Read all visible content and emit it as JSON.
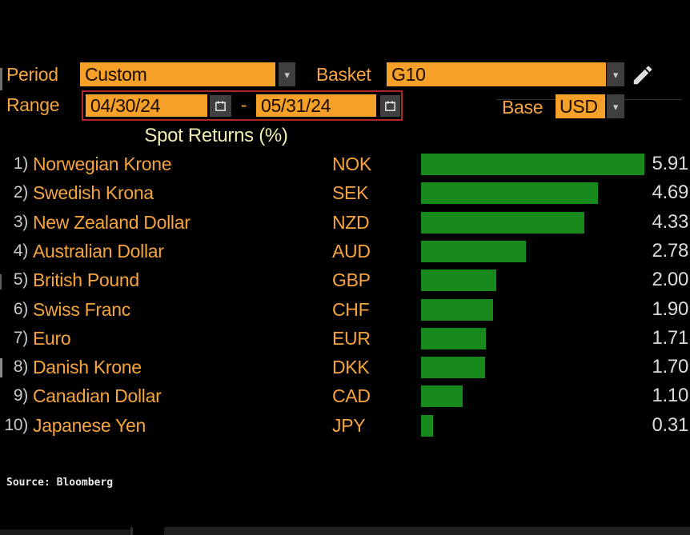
{
  "controls": {
    "period_label": "Period",
    "period_value": "Custom",
    "basket_label": "Basket",
    "basket_value": "G10",
    "range_label": "Range",
    "range_start": "04/30/24",
    "range_separator": "-",
    "range_end": "05/31/24",
    "base_label": "Base",
    "base_value": "USD"
  },
  "icons": {
    "dropdown_arrow": "▾"
  },
  "title": "Spot Returns (%)",
  "source": "Source: Bloomberg",
  "colors": {
    "accent_orange": "#F6A43D",
    "field_orange": "#F5A028",
    "border_red": "#B32626",
    "bar_green": "#17891D",
    "title_yellow": "#EFEDB4"
  },
  "chart_data": {
    "type": "bar",
    "orientation": "horizontal",
    "title": "Spot Returns (%)",
    "unit": "%",
    "value_labels_shown": true,
    "rows": [
      {
        "rank": "1)",
        "name": "Norwegian Krone",
        "code": "NOK",
        "value": 5.91
      },
      {
        "rank": "2)",
        "name": "Swedish Krona",
        "code": "SEK",
        "value": 4.69
      },
      {
        "rank": "3)",
        "name": "New Zealand Dollar",
        "code": "NZD",
        "value": 4.33
      },
      {
        "rank": "4)",
        "name": "Australian Dollar",
        "code": "AUD",
        "value": 2.78
      },
      {
        "rank": "5)",
        "name": "British Pound",
        "code": "GBP",
        "value": 2.0
      },
      {
        "rank": "6)",
        "name": "Swiss Franc",
        "code": "CHF",
        "value": 1.9
      },
      {
        "rank": "7)",
        "name": "Euro",
        "code": "EUR",
        "value": 1.71
      },
      {
        "rank": "8)",
        "name": "Danish Krone",
        "code": "DKK",
        "value": 1.7
      },
      {
        "rank": "9)",
        "name": "Canadian Dollar",
        "code": "CAD",
        "value": 1.1
      },
      {
        "rank": "10)",
        "name": "Japanese Yen",
        "code": "JPY",
        "value": 0.31
      }
    ]
  }
}
